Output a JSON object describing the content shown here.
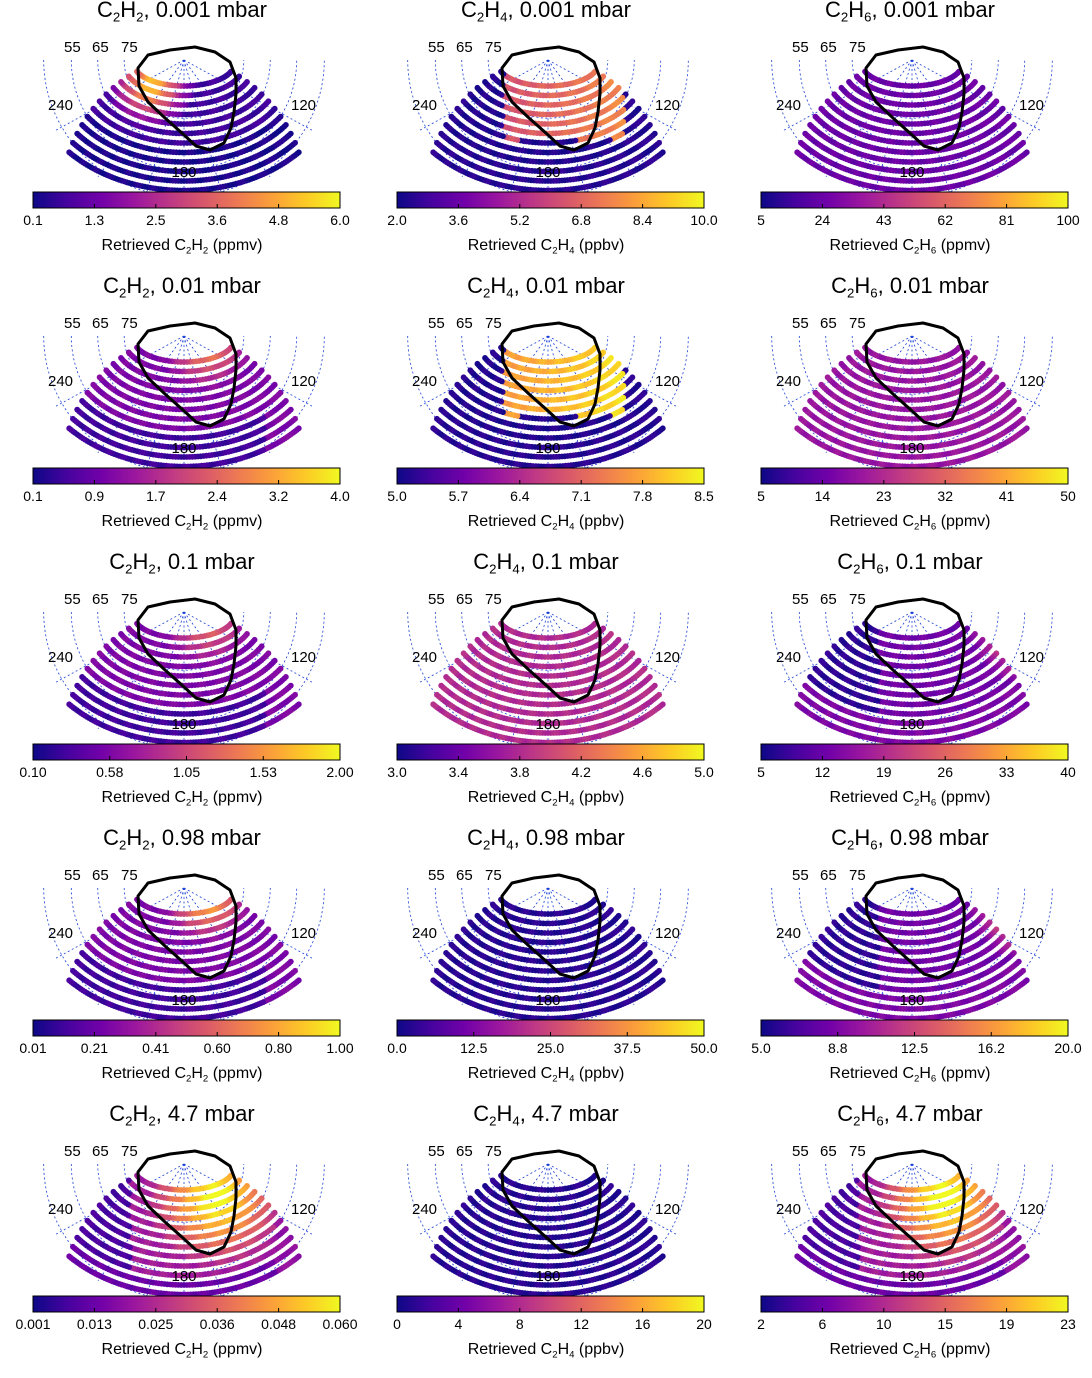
{
  "colormap": [
    "#0d0887",
    "#46039f",
    "#7201a8",
    "#9c179e",
    "#bd3786",
    "#d8576b",
    "#ed7953",
    "#fb9f3a",
    "#fdca26",
    "#f0f921"
  ],
  "grid_color": "#1a3fd6",
  "polar_labels": {
    "lat": [
      "55",
      "65",
      "75"
    ],
    "lon_left": "240",
    "lon_right": "120",
    "lon_bottom": "180"
  },
  "panels": [
    {
      "gas": "C₂H₂",
      "title_pre": "C",
      "title_sub1": "2",
      "title_mid": "H",
      "title_sub2": "2",
      "title_post": ", 0.001 mbar",
      "cbar_ticks": [
        "0.1",
        "1.3",
        "2.5",
        "3.6",
        "4.8",
        "6.0"
      ],
      "clabel_pre": "Retrieved C",
      "clabel_sub1": "2",
      "clabel_mid": "H",
      "clabel_sub2": "2",
      "clabel_post": " (ppmv)",
      "pattern": "hot-upper-left",
      "intensity": 0.65
    },
    {
      "gas": "C₂H₄",
      "title_pre": "C",
      "title_sub1": "2",
      "title_mid": "H",
      "title_sub2": "4",
      "title_post": ", 0.001 mbar",
      "cbar_ticks": [
        "2.0",
        "3.6",
        "5.2",
        "6.8",
        "8.4",
        "10.0"
      ],
      "clabel_pre": "Retrieved C",
      "clabel_sub1": "2",
      "clabel_mid": "H",
      "clabel_sub2": "4",
      "clabel_post": " (ppbv)",
      "pattern": "inside-contour",
      "intensity": 0.55
    },
    {
      "gas": "C₂H₆",
      "title_pre": "C",
      "title_sub1": "2",
      "title_mid": "H",
      "title_sub2": "6",
      "title_post": ", 0.001 mbar",
      "cbar_ticks": [
        "5",
        "24",
        "43",
        "62",
        "81",
        "100"
      ],
      "clabel_pre": "Retrieved C",
      "clabel_sub1": "2",
      "clabel_mid": "H",
      "clabel_sub2": "6",
      "clabel_post": " (ppmv)",
      "pattern": "uniform",
      "intensity": 0.2
    },
    {
      "gas": "C₂H₂",
      "title_pre": "C",
      "title_sub1": "2",
      "title_mid": "H",
      "title_sub2": "2",
      "title_post": ", 0.01 mbar",
      "cbar_ticks": [
        "0.1",
        "0.9",
        "1.7",
        "2.4",
        "3.2",
        "4.0"
      ],
      "clabel_pre": "Retrieved C",
      "clabel_sub1": "2",
      "clabel_mid": "H",
      "clabel_sub2": "2",
      "clabel_post": " (ppmv)",
      "pattern": "hot-center-top",
      "intensity": 0.55
    },
    {
      "gas": "C₂H₄",
      "title_pre": "C",
      "title_sub1": "2",
      "title_mid": "H",
      "title_sub2": "4",
      "title_post": ", 0.01 mbar",
      "cbar_ticks": [
        "5.0",
        "5.7",
        "6.4",
        "7.1",
        "7.8",
        "8.5"
      ],
      "clabel_pre": "Retrieved C",
      "clabel_sub1": "2",
      "clabel_mid": "H",
      "clabel_sub2": "4",
      "clabel_post": " (ppbv)",
      "pattern": "inside-contour",
      "intensity": 0.78
    },
    {
      "gas": "C₂H₆",
      "title_pre": "C",
      "title_sub1": "2",
      "title_mid": "H",
      "title_sub2": "6",
      "title_post": ", 0.01 mbar",
      "cbar_ticks": [
        "5",
        "14",
        "23",
        "32",
        "41",
        "50"
      ],
      "clabel_pre": "Retrieved C",
      "clabel_sub1": "2",
      "clabel_mid": "H",
      "clabel_sub2": "6",
      "clabel_post": " (ppmv)",
      "pattern": "uniform",
      "intensity": 0.32
    },
    {
      "gas": "C₂H₂",
      "title_pre": "C",
      "title_sub1": "2",
      "title_mid": "H",
      "title_sub2": "2",
      "title_post": ", 0.1 mbar",
      "cbar_ticks": [
        "0.10",
        "0.58",
        "1.05",
        "1.53",
        "2.00"
      ],
      "clabel_pre": "Retrieved C",
      "clabel_sub1": "2",
      "clabel_mid": "H",
      "clabel_sub2": "2",
      "clabel_post": " (ppmv)",
      "pattern": "hot-center-top",
      "intensity": 0.45
    },
    {
      "gas": "C₂H₄",
      "title_pre": "C",
      "title_sub1": "2",
      "title_mid": "H",
      "title_sub2": "4",
      "title_post": ", 0.1 mbar",
      "cbar_ticks": [
        "3.0",
        "3.4",
        "3.8",
        "4.2",
        "4.6",
        "5.0"
      ],
      "clabel_pre": "Retrieved C",
      "clabel_sub1": "2",
      "clabel_mid": "H",
      "clabel_sub2": "4",
      "clabel_post": " (ppbv)",
      "pattern": "uniform",
      "intensity": 0.4
    },
    {
      "gas": "C₂H₆",
      "title_pre": "C",
      "title_sub1": "2",
      "title_mid": "H",
      "title_sub2": "6",
      "title_post": ", 0.1 mbar",
      "cbar_ticks": [
        "5",
        "12",
        "19",
        "26",
        "33",
        "40"
      ],
      "clabel_pre": "Retrieved C",
      "clabel_sub1": "2",
      "clabel_mid": "H",
      "clabel_sub2": "6",
      "clabel_post": " (ppmv)",
      "pattern": "hot-upper-right",
      "intensity": 0.6
    },
    {
      "gas": "C₂H₂",
      "title_pre": "C",
      "title_sub1": "2",
      "title_mid": "H",
      "title_sub2": "2",
      "title_post": ", 0.98 mbar",
      "cbar_ticks": [
        "0.01",
        "0.21",
        "0.41",
        "0.60",
        "0.80",
        "1.00"
      ],
      "clabel_pre": "Retrieved C",
      "clabel_sub1": "2",
      "clabel_mid": "H",
      "clabel_sub2": "2",
      "clabel_post": " (ppmv)",
      "pattern": "hot-center-top",
      "intensity": 0.7
    },
    {
      "gas": "C₂H₄",
      "title_pre": "C",
      "title_sub1": "2",
      "title_mid": "H",
      "title_sub2": "4",
      "title_post": ", 0.98 mbar",
      "cbar_ticks": [
        "0.0",
        "12.5",
        "25.0",
        "37.5",
        "50.0"
      ],
      "clabel_pre": "Retrieved C",
      "clabel_sub1": "2",
      "clabel_mid": "H",
      "clabel_sub2": "4",
      "clabel_post": " (ppbv)",
      "pattern": "uniform",
      "intensity": 0.05
    },
    {
      "gas": "C₂H₆",
      "title_pre": "C",
      "title_sub1": "2",
      "title_mid": "H",
      "title_sub2": "6",
      "title_post": ", 0.98 mbar",
      "cbar_ticks": [
        "5.0",
        "8.8",
        "12.5",
        "16.2",
        "20.0"
      ],
      "clabel_pre": "Retrieved C",
      "clabel_sub1": "2",
      "clabel_mid": "H",
      "clabel_sub2": "6",
      "clabel_post": " (ppmv)",
      "pattern": "hot-upper-right",
      "intensity": 0.7
    },
    {
      "gas": "C₂H₂",
      "title_pre": "C",
      "title_sub1": "2",
      "title_mid": "H",
      "title_sub2": "2",
      "title_post": ", 4.7 mbar",
      "cbar_ticks": [
        "0.001",
        "0.013",
        "0.025",
        "0.036",
        "0.048",
        "0.060"
      ],
      "clabel_pre": "Retrieved C",
      "clabel_sub1": "2",
      "clabel_mid": "H",
      "clabel_sub2": "2",
      "clabel_post": " (ppmv)",
      "pattern": "hot-center",
      "intensity": 0.75
    },
    {
      "gas": "C₂H₄",
      "title_pre": "C",
      "title_sub1": "2",
      "title_mid": "H",
      "title_sub2": "4",
      "title_post": ", 4.7 mbar",
      "cbar_ticks": [
        "0",
        "4",
        "8",
        "12",
        "16",
        "20"
      ],
      "clabel_pre": "Retrieved C",
      "clabel_sub1": "2",
      "clabel_mid": "H",
      "clabel_sub2": "4",
      "clabel_post": " (ppbv)",
      "pattern": "uniform",
      "intensity": 0.05
    },
    {
      "gas": "C₂H₆",
      "title_pre": "C",
      "title_sub1": "2",
      "title_mid": "H",
      "title_sub2": "6",
      "title_post": ", 4.7 mbar",
      "cbar_ticks": [
        "2",
        "6",
        "10",
        "15",
        "19",
        "23"
      ],
      "clabel_pre": "Retrieved C",
      "clabel_sub1": "2",
      "clabel_mid": "H",
      "clabel_sub2": "6",
      "clabel_post": " (ppmv)",
      "pattern": "hot-center",
      "intensity": 0.78
    }
  ],
  "chart_data": {
    "type": "heatmap",
    "projection": "polar (north-pole orthographic)",
    "latitude_circles_labeled": [
      55,
      65,
      75
    ],
    "longitude_labels": [
      240,
      120,
      180
    ],
    "rows_pressure_mbar": [
      "0.001",
      "0.01",
      "0.1",
      "0.98",
      "4.7"
    ],
    "columns_species": [
      "C₂H₂",
      "C₂H₄",
      "C₂H₆"
    ],
    "colorbar_ranges": [
      {
        "panel": "C₂H₂, 0.001 mbar",
        "min": 0.1,
        "max": 6.0,
        "unit": "ppmv"
      },
      {
        "panel": "C₂H₄, 0.001 mbar",
        "min": 2.0,
        "max": 10.0,
        "unit": "ppbv"
      },
      {
        "panel": "C₂H₆, 0.001 mbar",
        "min": 5,
        "max": 100,
        "unit": "ppmv"
      },
      {
        "panel": "C₂H₂, 0.01 mbar",
        "min": 0.1,
        "max": 4.0,
        "unit": "ppmv"
      },
      {
        "panel": "C₂H₄, 0.01 mbar",
        "min": 5.0,
        "max": 8.5,
        "unit": "ppbv"
      },
      {
        "panel": "C₂H₆, 0.01 mbar",
        "min": 5,
        "max": 50,
        "unit": "ppmv"
      },
      {
        "panel": "C₂H₂, 0.1 mbar",
        "min": 0.1,
        "max": 2.0,
        "unit": "ppmv"
      },
      {
        "panel": "C₂H₄, 0.1 mbar",
        "min": 3.0,
        "max": 5.0,
        "unit": "ppbv"
      },
      {
        "panel": "C₂H₆, 0.1 mbar",
        "min": 5,
        "max": 40,
        "unit": "ppmv"
      },
      {
        "panel": "C₂H₂, 0.98 mbar",
        "min": 0.01,
        "max": 1.0,
        "unit": "ppmv"
      },
      {
        "panel": "C₂H₄, 0.98 mbar",
        "min": 0.0,
        "max": 50.0,
        "unit": "ppbv"
      },
      {
        "panel": "C₂H₆, 0.98 mbar",
        "min": 5.0,
        "max": 20.0,
        "unit": "ppmv"
      },
      {
        "panel": "C₂H₂, 4.7 mbar",
        "min": 0.001,
        "max": 0.06,
        "unit": "ppmv"
      },
      {
        "panel": "C₂H₄, 4.7 mbar",
        "min": 0,
        "max": 20,
        "unit": "ppbv"
      },
      {
        "panel": "C₂H₆, 4.7 mbar",
        "min": 2,
        "max": 23,
        "unit": "ppmv"
      }
    ],
    "colormap_name": "plasma"
  }
}
